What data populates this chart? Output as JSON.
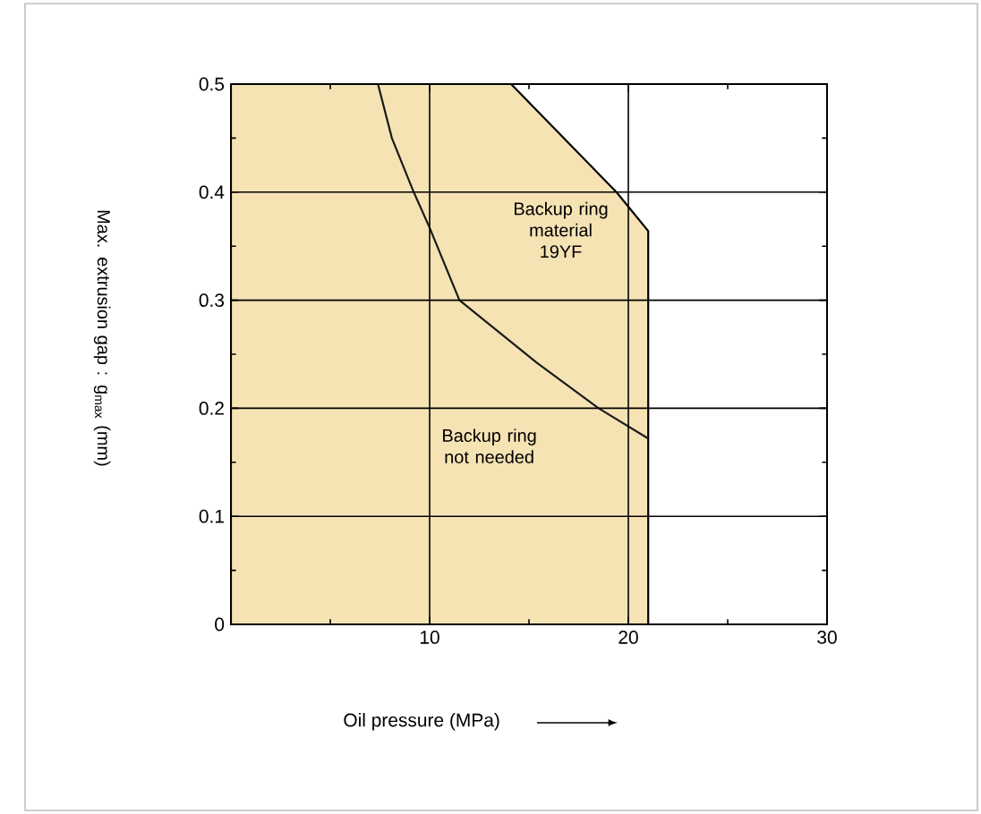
{
  "chart_data": {
    "type": "area",
    "xlabel": "Oil pressure (MPa)",
    "ylabel": "Max. extrusion gap : g$_{max}$ (mm)",
    "xlim": [
      0,
      30
    ],
    "ylim": [
      0,
      0.5
    ],
    "xticks": [
      {
        "value": 0,
        "label": null
      },
      10,
      20,
      30
    ],
    "yticks": [
      0,
      0.1,
      0.2,
      0.3,
      0.4,
      0.5
    ],
    "grid": true,
    "annotations": [
      "Backup ring material 19YF",
      "Backup ring not needed"
    ],
    "series": [
      {
        "type": "area",
        "color": "#f6e3b4",
        "x": [
          0,
          14.1,
          19.4,
          21,
          21
        ],
        "values": [
          0.5,
          0.5,
          0.4,
          0.364,
          0
        ]
      },
      {
        "type": "line",
        "color": "#1a1a1a",
        "x": [
          7.4,
          8.1,
          9.2,
          10,
          11.5,
          15.4,
          18.5,
          21
        ],
        "values": [
          0.5,
          0.45,
          0.4,
          0.367,
          0.3,
          0.242,
          0.2,
          0.172
        ]
      }
    ]
  }
}
